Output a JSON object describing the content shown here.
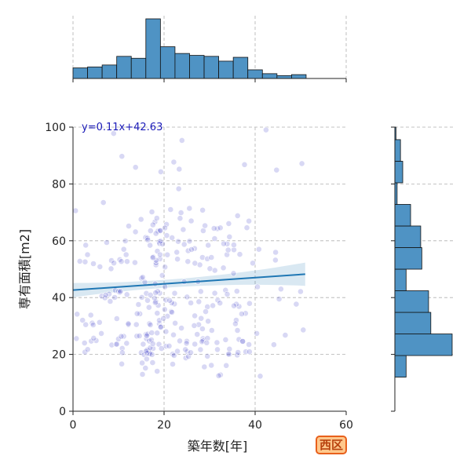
{
  "chart_data": {
    "type": "scatter",
    "xlabel": "築年数[年]",
    "ylabel": "専有面積[m2]",
    "xlim": [
      0,
      60
    ],
    "ylim": [
      0,
      100
    ],
    "xticks": [
      0,
      20,
      40,
      60
    ],
    "yticks": [
      0,
      20,
      40,
      60,
      80,
      100
    ],
    "grid": true,
    "regression": {
      "slope": 0.11,
      "intercept": 42.63,
      "label": "y=0.11x+42.63",
      "x_range": [
        0,
        51
      ]
    },
    "marginal_x_hist": {
      "bin_edges": [
        0,
        3.2,
        6.4,
        9.6,
        12.8,
        16,
        19.2,
        22.4,
        25.6,
        28.8,
        32,
        35.2,
        38.4,
        41.6,
        44.8,
        48,
        51.2
      ],
      "counts": [
        11,
        12,
        14,
        23,
        21,
        62,
        33,
        26,
        24,
        23,
        18,
        22,
        9,
        5,
        3,
        4
      ]
    },
    "marginal_y_hist": {
      "bin_edges": [
        12,
        19.6,
        27.2,
        34.8,
        42.4,
        50,
        57.6,
        65.2,
        72.8,
        80.4,
        88,
        95.6,
        100
      ],
      "counts": [
        10,
        51,
        32,
        30,
        10,
        24,
        23,
        14,
        2,
        7,
        5,
        1
      ]
    },
    "label_badge": "西区",
    "colors": {
      "points": "#3a3ac8",
      "regression": "#1f77b4",
      "histogram": "#4f93c4",
      "badge_fill": "#ffc88c",
      "badge_border": "#e8601c",
      "badge_text": "#b8420e"
    }
  }
}
